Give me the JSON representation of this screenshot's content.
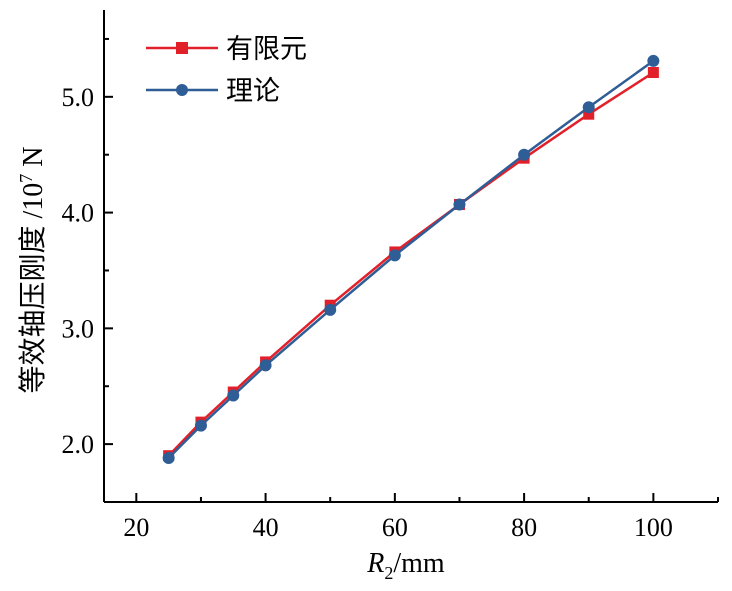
{
  "chart_data": {
    "type": "line",
    "xlabel_main": "R",
    "xlabel_sub": "2",
    "xlabel_unit": "/mm",
    "ylabel_main": "等效轴压刚度 /10",
    "ylabel_sup": "7",
    "ylabel_unit": " N",
    "xlim": [
      15,
      110
    ],
    "ylim": [
      1.5,
      5.75
    ],
    "xticks": [
      20,
      40,
      60,
      80,
      100
    ],
    "xtick_labels": [
      "20",
      "40",
      "60",
      "80",
      "100"
    ],
    "yticks": [
      2.0,
      3.0,
      4.0,
      5.0
    ],
    "ytick_labels": [
      "2.0",
      "3.0",
      "4.0",
      "5.0"
    ],
    "legend_position": "top-left",
    "grid": false,
    "x": [
      25,
      30,
      35,
      40,
      50,
      60,
      70,
      80,
      90,
      100
    ],
    "series": [
      {
        "name": "有限元",
        "color": "#e2202a",
        "marker": "square",
        "values": [
          1.9,
          2.19,
          2.45,
          2.71,
          3.2,
          3.66,
          4.07,
          4.47,
          4.85,
          5.21
        ]
      },
      {
        "name": "理论",
        "color": "#2f5d96",
        "marker": "circle",
        "values": [
          1.88,
          2.16,
          2.42,
          2.68,
          3.16,
          3.63,
          4.07,
          4.5,
          4.91,
          5.31
        ]
      }
    ]
  }
}
